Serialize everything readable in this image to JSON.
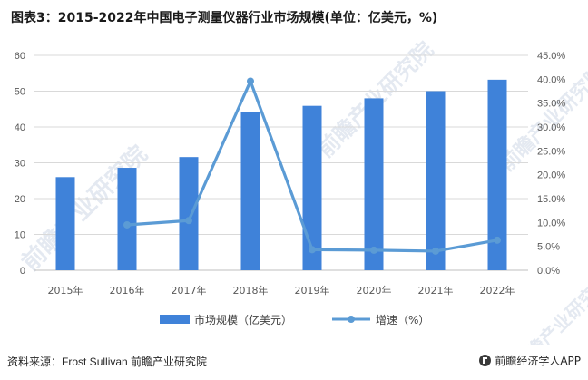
{
  "title": "图表3：2015-2022年中国电子测量仪器行业市场规模(单位：亿美元，%)",
  "chart_data": {
    "type": "bar",
    "categories": [
      "2015年",
      "2016年",
      "2017年",
      "2018年",
      "2019年",
      "2020年",
      "2021年",
      "2022年"
    ],
    "series": [
      {
        "name": "市场规模（亿美元）",
        "type": "bar",
        "axis": "left",
        "values": [
          26.0,
          28.6,
          31.6,
          44.1,
          45.9,
          48.0,
          50.0,
          53.2
        ]
      },
      {
        "name": "增速（%）",
        "type": "line",
        "axis": "right",
        "values": [
          null,
          9.5,
          10.4,
          39.6,
          4.3,
          4.2,
          4.0,
          6.3
        ]
      }
    ],
    "left_axis": {
      "min": 0,
      "max": 60,
      "step": 10,
      "ticks": [
        "0",
        "10",
        "20",
        "30",
        "40",
        "50",
        "60"
      ]
    },
    "right_axis": {
      "min": 0,
      "max": 45,
      "step": 5,
      "ticks": [
        "0.0%",
        "5.0%",
        "10.0%",
        "15.0%",
        "20.0%",
        "25.0%",
        "30.0%",
        "35.0%",
        "40.0%",
        "45.0%"
      ]
    },
    "grid": true,
    "legend_position": "bottom",
    "colors": {
      "bar": "#3f82d9",
      "line": "#5b9bd5"
    }
  },
  "watermark": "前瞻产业研究院",
  "footer": {
    "source_label": "资料来源：",
    "source_value": "Frost Sullivan 前瞻产业研究院",
    "brand": "前瞻经济学人APP"
  }
}
